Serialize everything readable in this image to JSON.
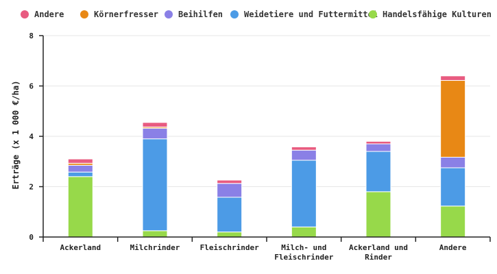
{
  "chart_data": {
    "type": "bar",
    "stacked": true,
    "ylabel": "Erträge (x 1 000 €/ha)",
    "ylim": [
      0,
      8
    ],
    "yticks": [
      0,
      2,
      4,
      6,
      8
    ],
    "grid": true,
    "legend_position": "top",
    "categories": [
      [
        "Ackerland"
      ],
      [
        "Milchrinder"
      ],
      [
        "Fleischrinder"
      ],
      [
        "Milch- und",
        "Fleischrinder"
      ],
      [
        "Ackerland und",
        "Rinder"
      ],
      [
        "Andere"
      ]
    ],
    "series": [
      {
        "name": "Handelsfähige Kulturen",
        "color": "#97d94a",
        "values": [
          2.4,
          0.25,
          0.2,
          0.4,
          1.8,
          1.23
        ]
      },
      {
        "name": "Weidetiere und Futtermittel",
        "color": "#4c9be6",
        "values": [
          0.18,
          3.65,
          1.38,
          2.65,
          1.6,
          1.52
        ]
      },
      {
        "name": "Beihilfen",
        "color": "#8a80e6",
        "values": [
          0.27,
          0.42,
          0.55,
          0.4,
          0.3,
          0.42
        ]
      },
      {
        "name": "Körnerfresser",
        "color": "#e88815",
        "values": [
          0.08,
          0.05,
          0.0,
          0.0,
          0.0,
          3.05
        ]
      },
      {
        "name": "Andere",
        "color": "#e85b80",
        "values": [
          0.17,
          0.18,
          0.13,
          0.13,
          0.1,
          0.18
        ]
      }
    ]
  },
  "legend": [
    {
      "label": "Andere",
      "color": "#e85b80"
    },
    {
      "label": "Körnerfresser",
      "color": "#e88815"
    },
    {
      "label": "Beihilfen",
      "color": "#8a80e6"
    },
    {
      "label": "Weidetiere und Futtermittel",
      "color": "#4c9be6"
    },
    {
      "label": "Handelsfähige Kulturen",
      "color": "#97d94a"
    }
  ]
}
